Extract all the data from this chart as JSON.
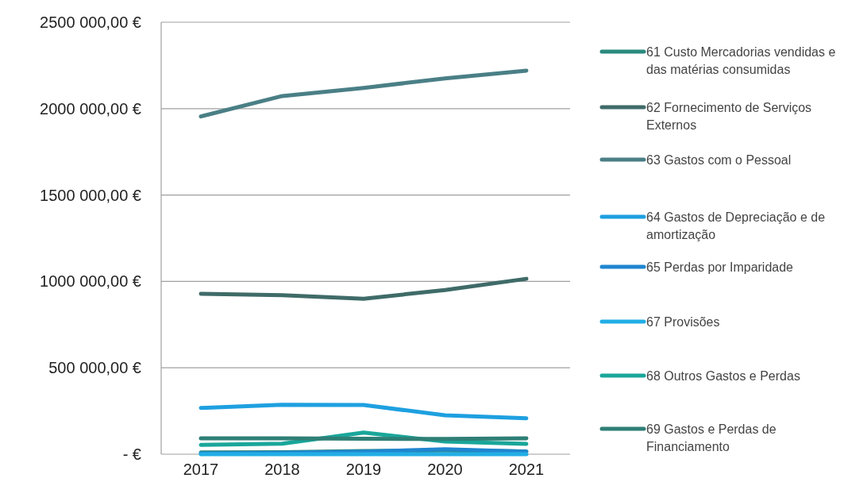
{
  "chart_data": {
    "type": "line",
    "categories": [
      "2017",
      "2018",
      "2019",
      "2020",
      "2021"
    ],
    "ylim": [
      0,
      2500000
    ],
    "yticks": [
      {
        "value": 0,
        "label": "-  €"
      },
      {
        "value": 500000,
        "label": "500 000,00 €"
      },
      {
        "value": 1000000,
        "label": "1000 000,00 €"
      },
      {
        "value": 1500000,
        "label": "1500 000,00 €"
      },
      {
        "value": 2000000,
        "label": "2000 000,00 €"
      },
      {
        "value": 2500000,
        "label": "2500 000,00 €"
      }
    ],
    "grid": "y",
    "legend": "right",
    "marker": "none",
    "line_style": "solid",
    "series": [
      {
        "name": "61 Custo Mercadorias vendidas e das matérias consumidas",
        "color": "#2a8a7e",
        "values": [
          10000,
          12000,
          18000,
          22000,
          16000
        ]
      },
      {
        "name": "62 Fornecimento de Serviços Externos",
        "color": "#3f6b68",
        "values": [
          928000,
          920000,
          900000,
          950000,
          1015000
        ]
      },
      {
        "name": "63 Gastos com o Pessoal",
        "color": "#4a7f86",
        "values": [
          1955000,
          2073000,
          2120000,
          2175000,
          2220000
        ]
      },
      {
        "name": "64 Gastos de Depreciação e de amortização",
        "color": "#1ea0e0",
        "values": [
          268000,
          286000,
          285000,
          225000,
          208000
        ]
      },
      {
        "name": "65 Perdas por Imparidade",
        "color": "#1f86d0",
        "values": [
          5000,
          8000,
          15000,
          29000,
          15000
        ]
      },
      {
        "name": "67 Provisões",
        "color": "#22aee6",
        "values": [
          0,
          0,
          0,
          0,
          0
        ]
      },
      {
        "name": "68 Outros Gastos e Perdas",
        "color": "#1aa69a",
        "values": [
          54000,
          61000,
          125000,
          73000,
          60000
        ]
      },
      {
        "name": "69 Gastos e Perdas de Financiamento",
        "color": "#2f7f76",
        "values": [
          92000,
          92000,
          90000,
          88000,
          92000
        ]
      }
    ]
  }
}
